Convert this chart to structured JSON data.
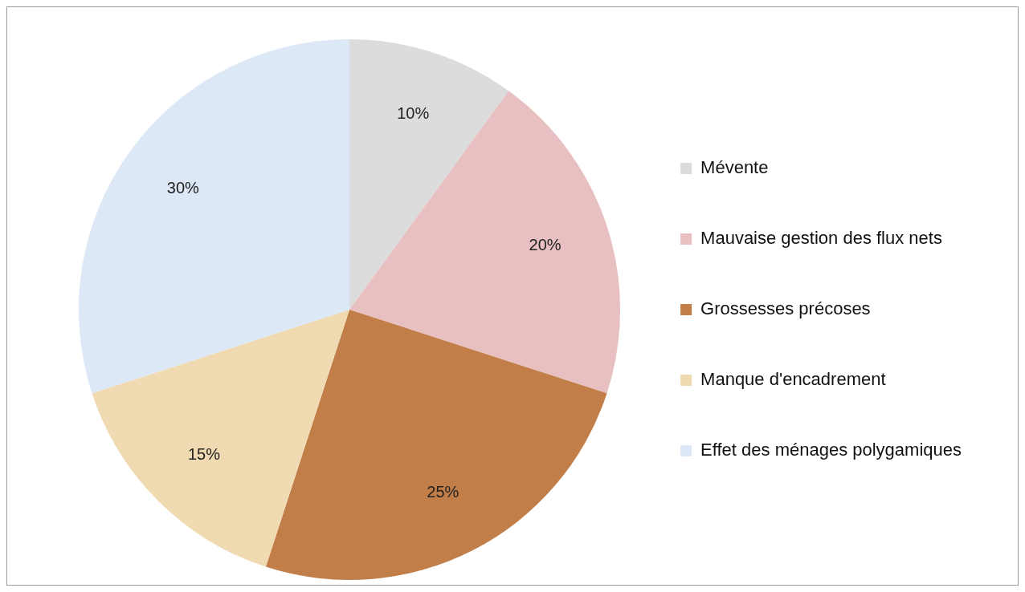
{
  "chart_data": {
    "type": "pie",
    "categories": [
      "Mévente",
      "Mauvaise gestion des flux nets",
      "Grossesses précoses",
      "Manque d'encadrement",
      "Effet des ménages polygamiques"
    ],
    "values": [
      10,
      20,
      25,
      15,
      30
    ],
    "colors": [
      "#dcdcdc",
      "#e8c0c1",
      "#c27e48",
      "#efdab2",
      "#dce8f6"
    ],
    "value_labels": [
      "10%",
      "20%",
      "25%",
      "15%",
      "30%"
    ],
    "legend": "right"
  }
}
